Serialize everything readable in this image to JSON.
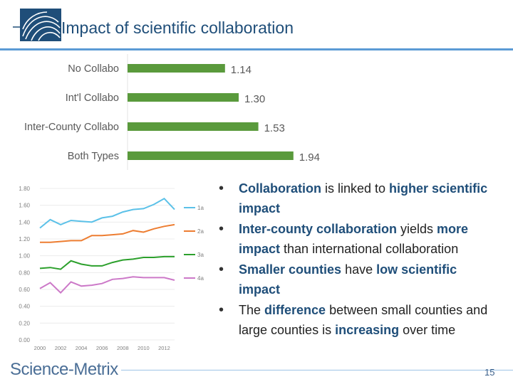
{
  "slide": {
    "title": "Impact of scientific collaboration",
    "page_number": "15",
    "brand": {
      "part1": "Science",
      "sep": "-",
      "part2": "Metrix"
    }
  },
  "colors": {
    "accent": "#1f4e79",
    "rule": "#5b9bd5",
    "bar": "#5a9a3c",
    "series_1a": "#5bc1e8",
    "series_2a": "#ed7d31",
    "series_3a": "#2ca02c",
    "series_4a": "#cc79c8"
  },
  "bullets": [
    [
      {
        "t": "Collaboration",
        "h": true
      },
      {
        "t": " is linked to ",
        "h": false
      },
      {
        "t": "higher scientific impact",
        "h": true
      }
    ],
    [
      {
        "t": "Inter-county collaboration",
        "h": true
      },
      {
        "t": " yields ",
        "h": false
      },
      {
        "t": "more impact",
        "h": true
      },
      {
        "t": " than international collaboration",
        "h": false
      }
    ],
    [
      {
        "t": "Smaller counties",
        "h": true
      },
      {
        "t": " have ",
        "h": false
      },
      {
        "t": "low scientific impact",
        "h": true
      }
    ],
    [
      {
        "t": "The ",
        "h": false
      },
      {
        "t": "difference",
        "h": true
      },
      {
        "t": " between small counties and large counties is ",
        "h": false
      },
      {
        "t": "increasing",
        "h": true
      },
      {
        "t": " over time",
        "h": false
      }
    ]
  ],
  "chart_data": [
    {
      "type": "bar",
      "orientation": "horizontal",
      "categories": [
        "No Collabo",
        "Int'l Collabo",
        "Inter-County Collabo",
        "Both Types"
      ],
      "values": [
        1.14,
        1.3,
        1.53,
        1.94
      ],
      "data_labels": [
        "1.14",
        "1.30",
        "1.53",
        "1.94"
      ],
      "xlim": [
        0,
        2.4
      ]
    },
    {
      "type": "line",
      "x": [
        2000,
        2001,
        2002,
        2003,
        2004,
        2005,
        2006,
        2007,
        2008,
        2009,
        2010,
        2011,
        2012,
        2013
      ],
      "x_tick_labels": [
        "2000",
        "2002",
        "2004",
        "2006",
        "2008",
        "2010",
        "2012"
      ],
      "y_tick_labels": [
        "0.00",
        "0.20",
        "0.40",
        "0.60",
        "0.80",
        "1.00",
        "1.20",
        "1.40",
        "1.60",
        "1.80"
      ],
      "ylim": [
        0,
        1.8
      ],
      "grid": true,
      "legend": "right",
      "series": [
        {
          "name": "1a",
          "values": [
            1.33,
            1.43,
            1.37,
            1.42,
            1.41,
            1.4,
            1.45,
            1.47,
            1.52,
            1.55,
            1.56,
            1.61,
            1.68,
            1.55
          ]
        },
        {
          "name": "2a",
          "values": [
            1.16,
            1.16,
            1.17,
            1.18,
            1.18,
            1.24,
            1.24,
            1.25,
            1.26,
            1.3,
            1.28,
            1.32,
            1.35,
            1.37
          ]
        },
        {
          "name": "3a",
          "values": [
            0.85,
            0.86,
            0.84,
            0.94,
            0.9,
            0.88,
            0.88,
            0.92,
            0.95,
            0.96,
            0.98,
            0.98,
            0.99,
            0.99
          ]
        },
        {
          "name": "4a",
          "values": [
            0.61,
            0.68,
            0.56,
            0.69,
            0.64,
            0.65,
            0.67,
            0.72,
            0.73,
            0.75,
            0.74,
            0.74,
            0.74,
            0.71
          ]
        }
      ]
    }
  ]
}
